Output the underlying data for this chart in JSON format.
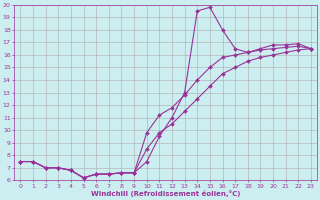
{
  "xlabel": "Windchill (Refroidissement éolien,°C)",
  "bg_color": "#cceef0",
  "line_color": "#993399",
  "grid_color": "#aaaaaa",
  "xlim": [
    -0.5,
    23.5
  ],
  "ylim": [
    6,
    20
  ],
  "xticks": [
    0,
    1,
    2,
    3,
    4,
    5,
    6,
    7,
    8,
    9,
    10,
    11,
    12,
    13,
    14,
    15,
    16,
    17,
    18,
    19,
    20,
    21,
    22,
    23
  ],
  "yticks": [
    6,
    7,
    8,
    9,
    10,
    11,
    12,
    13,
    14,
    15,
    16,
    17,
    18,
    19,
    20
  ],
  "line1_x": [
    0,
    1,
    2,
    3,
    4,
    5,
    6,
    7,
    8,
    9,
    10,
    11,
    12,
    13,
    14,
    15,
    16,
    17,
    18,
    19,
    20,
    21,
    22,
    23
  ],
  "line1_y": [
    7.5,
    7.5,
    7.0,
    7.0,
    6.8,
    6.2,
    6.5,
    6.5,
    6.6,
    6.6,
    7.5,
    9.5,
    11.0,
    13.0,
    19.5,
    19.8,
    18.0,
    16.5,
    16.2,
    16.5,
    16.8,
    16.8,
    16.9,
    16.5
  ],
  "line2_x": [
    0,
    1,
    2,
    3,
    4,
    5,
    6,
    7,
    8,
    9,
    10,
    11,
    12,
    13,
    14,
    15,
    16,
    17,
    18,
    19,
    20,
    21,
    22,
    23
  ],
  "line2_y": [
    7.5,
    7.5,
    7.0,
    7.0,
    6.8,
    6.2,
    6.5,
    6.5,
    6.6,
    6.6,
    9.8,
    11.2,
    11.8,
    12.8,
    14.0,
    15.0,
    15.8,
    16.0,
    16.2,
    16.4,
    16.5,
    16.6,
    16.7,
    16.5
  ],
  "line3_x": [
    0,
    1,
    2,
    3,
    4,
    5,
    6,
    7,
    8,
    9,
    10,
    11,
    12,
    13,
    14,
    15,
    16,
    17,
    18,
    19,
    20,
    21,
    22,
    23
  ],
  "line3_y": [
    7.5,
    7.5,
    7.0,
    7.0,
    6.8,
    6.2,
    6.5,
    6.5,
    6.6,
    6.6,
    8.5,
    9.8,
    10.5,
    11.5,
    12.5,
    13.5,
    14.5,
    15.0,
    15.5,
    15.8,
    16.0,
    16.2,
    16.4,
    16.5
  ]
}
